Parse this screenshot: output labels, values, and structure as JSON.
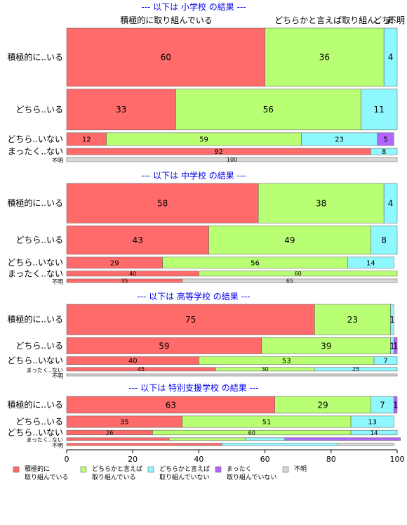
{
  "colors": {
    "積極的に取り組んでいる": "#ff6b6b",
    "どちらかと言えば取り組んでいる": "#b9ff73",
    "どちらかと言えば取り組んでいない": "#8ff8ff",
    "まったく取り組んでいない": "#b266ff",
    "不明": "#d8d8d8"
  },
  "chart_data": {
    "type": "bar",
    "orientation": "horizontal",
    "stacked": true,
    "variable_width": true,
    "xlim": [
      0,
      100
    ],
    "xticks": [
      0,
      20,
      40,
      60,
      80,
      100
    ],
    "grid": false,
    "legend_position": "bottom-left",
    "column_header_labels": [
      "積極的に取り組んでいる",
      "どちらかと言えば取り組ん..",
      "どち..",
      "ま..",
      "不明"
    ],
    "legend": [
      {
        "line1": "積極的に",
        "line2": "取り組んでいる"
      },
      {
        "line1": "どちらかと言えば",
        "line2": "取り組んでいる"
      },
      {
        "line1": "どちらかと言えば",
        "line2": "取り組んでいない"
      },
      {
        "line1": "まったく",
        "line2": "取り組んでいない"
      },
      {
        "line1": "不明",
        "line2": ""
      }
    ],
    "panels": [
      {
        "title": "--- 以下は 小学校 の結果 ---",
        "rows": [
          {
            "label": "積極的に..いる",
            "weight": 1.0,
            "values": [
              60,
              36,
              4,
              0,
              0
            ]
          },
          {
            "label": "どちら..いる",
            "weight": 0.7,
            "values": [
              33,
              56,
              11,
              0,
              0
            ]
          },
          {
            "label": "どちら..いない",
            "weight": 0.22,
            "values": [
              12,
              59,
              23,
              5,
              0
            ]
          },
          {
            "label": "まったく..ない",
            "weight": 0.11,
            "values": [
              92,
              0,
              8,
              0,
              0
            ]
          },
          {
            "label": "不明",
            "weight": 0.07,
            "values": [
              0,
              0,
              0,
              0,
              100
            ]
          }
        ]
      },
      {
        "title": "--- 以下は 中学校 の結果 ---",
        "rows": [
          {
            "label": "積極的に..いる",
            "weight": 1.0,
            "values": [
              58,
              38,
              4,
              0,
              0
            ]
          },
          {
            "label": "どちら..いる",
            "weight": 0.72,
            "values": [
              43,
              49,
              8,
              0,
              0
            ]
          },
          {
            "label": "どちら..いない",
            "weight": 0.28,
            "values": [
              29,
              56,
              14,
              0,
              0
            ]
          },
          {
            "label": "まったく..ない",
            "weight": 0.13,
            "values": [
              40,
              60,
              0,
              0,
              0
            ]
          },
          {
            "label": "不明",
            "weight": 0.09,
            "values": [
              35,
              0,
              0,
              0,
              65
            ]
          }
        ]
      },
      {
        "title": "--- 以下は 高等学校 の結果 ---",
        "rows": [
          {
            "label": "積極的に..いる",
            "weight": 1.0,
            "values": [
              75,
              23,
              1,
              0,
              0
            ]
          },
          {
            "label": "どちら..いる",
            "weight": 0.53,
            "values": [
              59,
              39,
              1,
              1,
              0
            ]
          },
          {
            "label": "どちら..いない",
            "weight": 0.26,
            "values": [
              40,
              53,
              7,
              0,
              0
            ]
          },
          {
            "label": "まったく..ない",
            "weight": 0.12,
            "values": [
              45,
              30,
              25,
              0,
              0
            ]
          },
          {
            "label": "不明",
            "weight": 0.07,
            "values": [
              0,
              0,
              0,
              0,
              100
            ]
          }
        ]
      },
      {
        "title": "--- 以下は 特別支援学校 の結果 ---",
        "rows": [
          {
            "label": "積極的に..いる",
            "weight": 1.0,
            "values": [
              63,
              29,
              7,
              1,
              0
            ]
          },
          {
            "label": "どちら..いる",
            "weight": 0.68,
            "values": [
              35,
              51,
              13,
              0,
              0
            ]
          },
          {
            "label": "どちら..いない",
            "weight": 0.28,
            "values": [
              26,
              60,
              14,
              0,
              0
            ]
          },
          {
            "label": "まったく..ない",
            "weight": 0.16,
            "values": [
              31,
              23,
              12,
              35,
              0
            ]
          },
          {
            "label": "不明",
            "weight": 0.14,
            "values": [
              47,
              0,
              35,
              0,
              17
            ]
          }
        ]
      }
    ]
  }
}
